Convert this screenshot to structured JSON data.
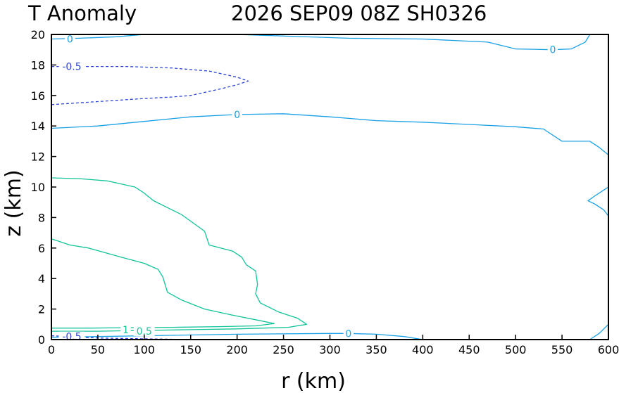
{
  "chart_data": {
    "type": "contour",
    "title_left": "T Anomaly",
    "title_right": "2026 SEP09 08Z   SH0326",
    "xlabel": "r (km)",
    "ylabel": "z (km)",
    "xlim": [
      0,
      600
    ],
    "ylim": [
      0,
      20
    ],
    "xticks": [
      0,
      50,
      100,
      150,
      200,
      250,
      300,
      350,
      400,
      450,
      500,
      550,
      600
    ],
    "yticks": [
      0,
      2,
      4,
      6,
      8,
      10,
      12,
      14,
      16,
      18,
      20
    ],
    "grid": false,
    "legend": "none",
    "contours": [
      {
        "level": "0",
        "color": "#1aa0e6",
        "dashed": false,
        "points": [
          [
            0,
            19.7
          ],
          [
            30,
            19.75
          ],
          [
            70,
            19.85
          ],
          [
            100,
            20.0
          ],
          [
            200,
            20.0
          ],
          [
            320,
            19.75
          ],
          [
            400,
            19.7
          ],
          [
            470,
            19.5
          ],
          [
            500,
            19.05
          ],
          [
            540,
            19.0
          ],
          [
            560,
            19.05
          ],
          [
            575,
            19.5
          ],
          [
            580,
            20.0
          ]
        ]
      },
      {
        "level": "0",
        "color": "#1aa0e6",
        "dashed": false,
        "points": [
          [
            0,
            13.85
          ],
          [
            50,
            14.0
          ],
          [
            100,
            14.3
          ],
          [
            150,
            14.6
          ],
          [
            200,
            14.75
          ],
          [
            250,
            14.8
          ],
          [
            300,
            14.6
          ],
          [
            350,
            14.35
          ],
          [
            400,
            14.25
          ],
          [
            450,
            14.1
          ],
          [
            500,
            13.95
          ],
          [
            530,
            13.8
          ],
          [
            550,
            13.0
          ],
          [
            570,
            13.0
          ],
          [
            580,
            13.0
          ],
          [
            590,
            12.6
          ],
          [
            600,
            12.1
          ]
        ]
      },
      {
        "level": "0",
        "color": "#1aa0e6",
        "dashed": false,
        "points": [
          [
            600,
            8.1
          ],
          [
            595,
            8.5
          ],
          [
            585,
            8.9
          ],
          [
            578,
            9.1
          ],
          [
            585,
            9.4
          ],
          [
            595,
            9.8
          ],
          [
            600,
            10.0
          ]
        ]
      },
      {
        "level": "0",
        "color": "#1aa0e6",
        "dashed": false,
        "points": [
          [
            0,
            0.15
          ],
          [
            50,
            0.2
          ],
          [
            100,
            0.25
          ],
          [
            200,
            0.35
          ],
          [
            300,
            0.4
          ],
          [
            320,
            0.4
          ],
          [
            350,
            0.35
          ],
          [
            380,
            0.2
          ],
          [
            400,
            0.0
          ]
        ]
      },
      {
        "level": "0",
        "color": "#1aa0e6",
        "dashed": false,
        "points": [
          [
            580,
            0.0
          ],
          [
            590,
            0.4
          ],
          [
            600,
            1.0
          ]
        ]
      },
      {
        "level": "-0.5",
        "color": "#2b45d6",
        "dashed": true,
        "points": [
          [
            0,
            15.4
          ],
          [
            50,
            15.6
          ],
          [
            100,
            15.8
          ],
          [
            130,
            15.9
          ],
          [
            150,
            16.0
          ],
          [
            180,
            16.4
          ],
          [
            200,
            16.7
          ],
          [
            212,
            16.95
          ],
          [
            200,
            17.2
          ],
          [
            170,
            17.6
          ],
          [
            130,
            17.8
          ],
          [
            80,
            17.9
          ],
          [
            30,
            17.9
          ],
          [
            0,
            17.9
          ]
        ]
      },
      {
        "level": "-0.5",
        "color": "#2b45d6",
        "dashed": true,
        "points": [
          [
            0,
            0.25
          ],
          [
            50,
            0.1
          ],
          [
            100,
            0.05
          ],
          [
            150,
            0.0
          ]
        ]
      },
      {
        "level": "0.5",
        "color": "#12c49a",
        "dashed": false,
        "points": [
          [
            0,
            10.6
          ],
          [
            30,
            10.55
          ],
          [
            60,
            10.4
          ],
          [
            90,
            10.0
          ],
          [
            100,
            9.6
          ],
          [
            110,
            9.1
          ],
          [
            140,
            8.2
          ],
          [
            165,
            7.1
          ],
          [
            170,
            6.2
          ],
          [
            195,
            5.8
          ],
          [
            205,
            5.4
          ],
          [
            210,
            4.9
          ],
          [
            220,
            4.5
          ],
          [
            222,
            3.6
          ],
          [
            220,
            3.0
          ],
          [
            225,
            2.4
          ],
          [
            245,
            1.8
          ],
          [
            265,
            1.4
          ],
          [
            275,
            1.0
          ],
          [
            255,
            0.8
          ],
          [
            200,
            0.7
          ],
          [
            150,
            0.65
          ],
          [
            100,
            0.6
          ],
          [
            50,
            0.55
          ],
          [
            0,
            0.55
          ]
        ]
      },
      {
        "level": "1",
        "color": "#12c49a",
        "dashed": false,
        "points": [
          [
            0,
            6.6
          ],
          [
            20,
            6.2
          ],
          [
            40,
            6.0
          ],
          [
            75,
            5.4
          ],
          [
            100,
            5.0
          ],
          [
            115,
            4.6
          ],
          [
            120,
            4.1
          ],
          [
            125,
            3.1
          ],
          [
            140,
            2.6
          ],
          [
            165,
            2.0
          ],
          [
            195,
            1.6
          ],
          [
            220,
            1.3
          ],
          [
            240,
            1.05
          ],
          [
            220,
            0.9
          ],
          [
            180,
            0.85
          ],
          [
            130,
            0.8
          ],
          [
            80,
            0.78
          ],
          [
            40,
            0.75
          ],
          [
            0,
            0.75
          ]
        ]
      }
    ],
    "contour_labels": [
      {
        "text": "0",
        "x": 20,
        "y": 19.7,
        "color": "#1aa0e6"
      },
      {
        "text": "0",
        "x": 540,
        "y": 19.0,
        "color": "#1aa0e6"
      },
      {
        "text": "0",
        "x": 200,
        "y": 14.75,
        "color": "#1aa0e6"
      },
      {
        "text": "0",
        "x": 320,
        "y": 0.4,
        "color": "#1aa0e6"
      },
      {
        "text": "-0.5",
        "x": 22,
        "y": 17.9,
        "color": "#2b45d6"
      },
      {
        "text": "-0.5",
        "x": 22,
        "y": 0.2,
        "color": "#2b45d6"
      },
      {
        "text": "1",
        "x": 80,
        "y": 0.65,
        "color": "#12c49a"
      },
      {
        "text": "0.5",
        "x": 100,
        "y": 0.55,
        "color": "#12c49a"
      }
    ]
  }
}
